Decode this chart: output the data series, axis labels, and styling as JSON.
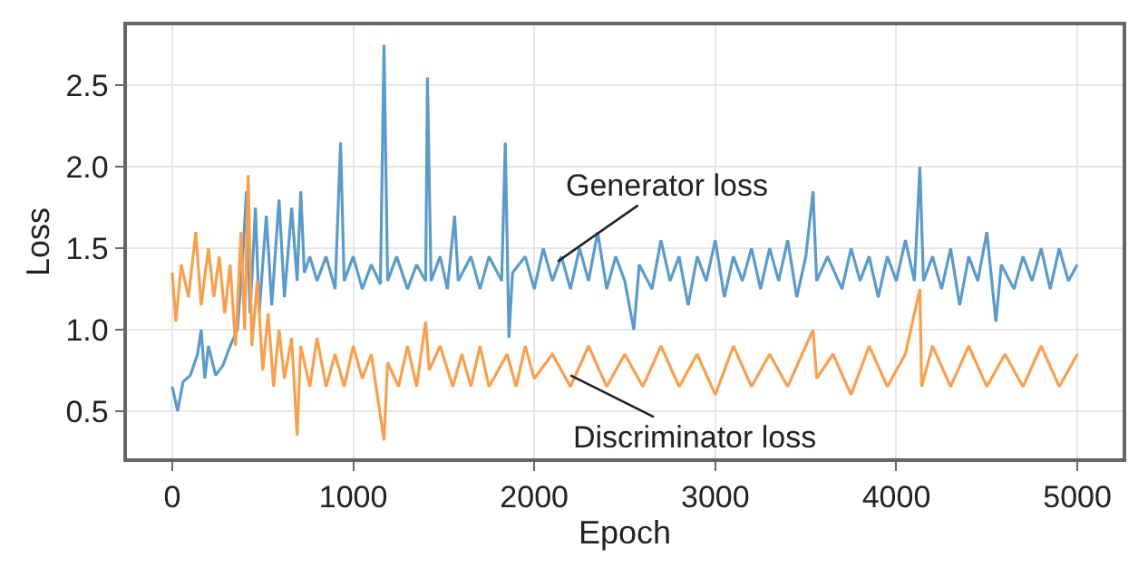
{
  "chart_data": {
    "type": "line",
    "xlabel": "Epoch",
    "ylabel": "Loss",
    "xlim": [
      -250,
      5250
    ],
    "xticks": [
      0,
      1000,
      2000,
      3000,
      4000,
      5000
    ],
    "ylim": [
      0.21,
      2.87
    ],
    "yticks": [
      0.5,
      {
        "value": 1,
        "label": "1.0"
      },
      1.5,
      {
        "value": 2,
        "label": "2.0"
      },
      2.5
    ],
    "grid": true,
    "marker": "none",
    "line_style": "solid",
    "series": [
      {
        "color": "#5b9bc9",
        "x": [
          0,
          30,
          60,
          100,
          140,
          160,
          180,
          200,
          240,
          280,
          320,
          360,
          390,
          410,
          430,
          460,
          480,
          520,
          550,
          590,
          620,
          660,
          690,
          710,
          730,
          760,
          800,
          850,
          900,
          930,
          950,
          1000,
          1050,
          1100,
          1150,
          1170,
          1190,
          1240,
          1300,
          1350,
          1400,
          1410,
          1430,
          1480,
          1520,
          1560,
          1580,
          1650,
          1700,
          1750,
          1820,
          1840,
          1860,
          1880,
          1950,
          2000,
          2050,
          2100,
          2150,
          2200,
          2250,
          2300,
          2350,
          2400,
          2450,
          2500,
          2550,
          2580,
          2650,
          2700,
          2750,
          2800,
          2850,
          2900,
          2950,
          3000,
          3050,
          3100,
          3150,
          3200,
          3250,
          3300,
          3350,
          3400,
          3450,
          3500,
          3540,
          3560,
          3620,
          3700,
          3750,
          3800,
          3850,
          3900,
          3950,
          4000,
          4050,
          4100,
          4130,
          4150,
          4200,
          4250,
          4300,
          4350,
          4400,
          4450,
          4500,
          4550,
          4580,
          4650,
          4700,
          4750,
          4800,
          4850,
          4900,
          4950,
          5000
        ],
        "values": [
          0.65,
          0.5,
          0.68,
          0.72,
          0.85,
          1.0,
          0.7,
          0.9,
          0.72,
          0.78,
          0.9,
          1.0,
          1.45,
          1.85,
          1.1,
          1.75,
          1.1,
          1.7,
          1.15,
          1.8,
          1.2,
          1.75,
          1.3,
          1.85,
          1.35,
          1.45,
          1.3,
          1.45,
          1.25,
          2.15,
          1.3,
          1.45,
          1.25,
          1.4,
          1.28,
          2.75,
          1.3,
          1.45,
          1.25,
          1.4,
          1.3,
          2.55,
          1.3,
          1.45,
          1.25,
          1.7,
          1.3,
          1.45,
          1.25,
          1.45,
          1.3,
          2.15,
          0.95,
          1.35,
          1.45,
          1.25,
          1.5,
          1.3,
          1.45,
          1.25,
          1.5,
          1.3,
          1.6,
          1.25,
          1.45,
          1.3,
          1.0,
          1.4,
          1.25,
          1.55,
          1.3,
          1.45,
          1.15,
          1.45,
          1.3,
          1.55,
          1.2,
          1.45,
          1.3,
          1.5,
          1.25,
          1.5,
          1.3,
          1.55,
          1.2,
          1.45,
          1.85,
          1.3,
          1.45,
          1.25,
          1.5,
          1.3,
          1.45,
          1.2,
          1.45,
          1.3,
          1.55,
          1.3,
          2.0,
          1.3,
          1.45,
          1.25,
          1.5,
          1.15,
          1.45,
          1.3,
          1.6,
          1.05,
          1.4,
          1.25,
          1.45,
          1.3,
          1.5,
          1.25,
          1.5,
          1.3,
          1.4
        ]
      },
      {
        "color": "#f9a04e",
        "x": [
          0,
          20,
          50,
          90,
          130,
          160,
          200,
          230,
          260,
          290,
          320,
          350,
          380,
          400,
          420,
          440,
          470,
          500,
          530,
          560,
          590,
          620,
          660,
          690,
          710,
          760,
          800,
          850,
          900,
          950,
          1000,
          1050,
          1100,
          1170,
          1190,
          1250,
          1300,
          1350,
          1400,
          1420,
          1480,
          1550,
          1600,
          1650,
          1700,
          1750,
          1850,
          1900,
          1950,
          2000,
          2100,
          2200,
          2300,
          2400,
          2500,
          2600,
          2700,
          2800,
          2900,
          3000,
          3100,
          3200,
          3300,
          3400,
          3500,
          3540,
          3560,
          3650,
          3750,
          3850,
          3950,
          4050,
          4130,
          4140,
          4200,
          4300,
          4400,
          4500,
          4600,
          4700,
          4800,
          4900,
          5000
        ],
        "values": [
          1.35,
          1.05,
          1.4,
          1.2,
          1.6,
          1.15,
          1.5,
          1.2,
          1.45,
          1.1,
          1.4,
          0.9,
          1.6,
          1.0,
          1.95,
          0.9,
          1.3,
          0.75,
          1.1,
          0.65,
          1.0,
          0.7,
          0.95,
          0.35,
          0.9,
          0.65,
          0.95,
          0.65,
          0.85,
          0.65,
          0.9,
          0.7,
          0.85,
          0.32,
          0.8,
          0.65,
          0.9,
          0.65,
          1.05,
          0.75,
          0.9,
          0.65,
          0.85,
          0.65,
          0.9,
          0.65,
          0.85,
          0.65,
          0.9,
          0.7,
          0.85,
          0.65,
          0.9,
          0.65,
          0.85,
          0.65,
          0.9,
          0.65,
          0.85,
          0.6,
          0.9,
          0.65,
          0.85,
          0.65,
          0.9,
          1.0,
          0.7,
          0.85,
          0.6,
          0.9,
          0.65,
          0.85,
          1.25,
          0.65,
          0.9,
          0.65,
          0.9,
          0.65,
          0.85,
          0.65,
          0.9,
          0.65,
          0.85
        ]
      }
    ],
    "annotations": [
      {
        "text": "Generator loss",
        "x": 2130,
        "y": 1.42
      },
      {
        "text": "Discriminator loss",
        "x": 2200,
        "y": 0.72
      }
    ]
  }
}
